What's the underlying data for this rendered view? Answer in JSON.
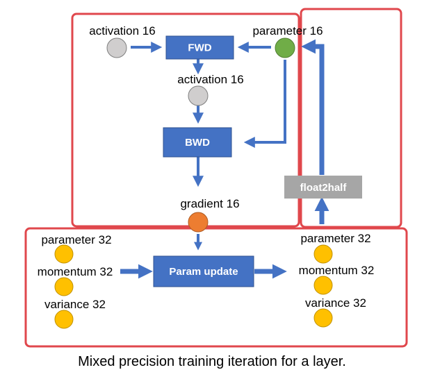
{
  "colors": {
    "red": "#e0474c",
    "blue": "#4472c4",
    "gray_box": "#a6a6a6",
    "gray_node": "#d0cece",
    "green_node": "#70ad47",
    "orange_node": "#ed7d31",
    "yellow_node": "#ffc000"
  },
  "labels": {
    "activation_in": "activation 16",
    "parameter_16": "parameter 16",
    "activation_mid": "activation 16",
    "gradient": "gradient 16",
    "left_parameter": "parameter 32",
    "left_momentum": "momentum 32",
    "left_variance": "variance 32",
    "right_parameter": "parameter 32",
    "right_momentum": "momentum 32",
    "right_variance": "variance 32"
  },
  "boxes": {
    "fwd": "FWD",
    "bwd": "BWD",
    "float2half": "float2half",
    "param_update": "Param update"
  },
  "caption": "Mixed precision training iteration for a layer."
}
